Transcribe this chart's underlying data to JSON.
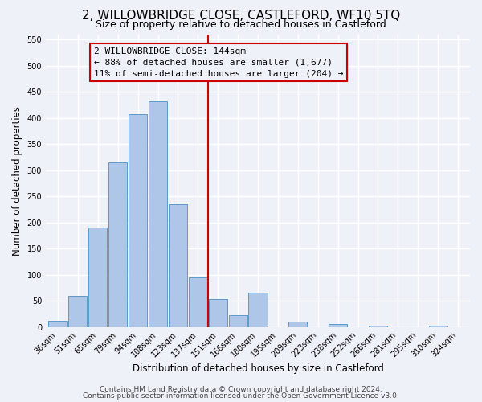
{
  "title": "2, WILLOWBRIDGE CLOSE, CASTLEFORD, WF10 5TQ",
  "subtitle": "Size of property relative to detached houses in Castleford",
  "xlabel": "Distribution of detached houses by size in Castleford",
  "ylabel": "Number of detached properties",
  "bar_labels": [
    "36sqm",
    "51sqm",
    "65sqm",
    "79sqm",
    "94sqm",
    "108sqm",
    "123sqm",
    "137sqm",
    "151sqm",
    "166sqm",
    "180sqm",
    "195sqm",
    "209sqm",
    "223sqm",
    "238sqm",
    "252sqm",
    "266sqm",
    "281sqm",
    "295sqm",
    "310sqm",
    "324sqm"
  ],
  "bar_values": [
    12,
    60,
    190,
    315,
    407,
    432,
    235,
    95,
    53,
    23,
    65,
    0,
    10,
    0,
    5,
    0,
    3,
    0,
    0,
    3,
    0
  ],
  "bar_color": "#aec6e8",
  "bar_edge_color": "#4a90c4",
  "vline_color": "#cc0000",
  "ylim": [
    0,
    560
  ],
  "yticks": [
    0,
    50,
    100,
    150,
    200,
    250,
    300,
    350,
    400,
    450,
    500,
    550
  ],
  "annotation_title": "2 WILLOWBRIDGE CLOSE: 144sqm",
  "annotation_line1": "← 88% of detached houses are smaller (1,677)",
  "annotation_line2": "11% of semi-detached houses are larger (204) →",
  "annotation_box_color": "#cc0000",
  "footer1": "Contains HM Land Registry data © Crown copyright and database right 2024.",
  "footer2": "Contains public sector information licensed under the Open Government Licence v3.0.",
  "bg_color": "#eef2f8",
  "grid_color": "#ffffff",
  "title_fontsize": 11,
  "subtitle_fontsize": 9,
  "axis_label_fontsize": 8.5,
  "tick_fontsize": 7,
  "annotation_fontsize": 8,
  "footer_fontsize": 6.5
}
